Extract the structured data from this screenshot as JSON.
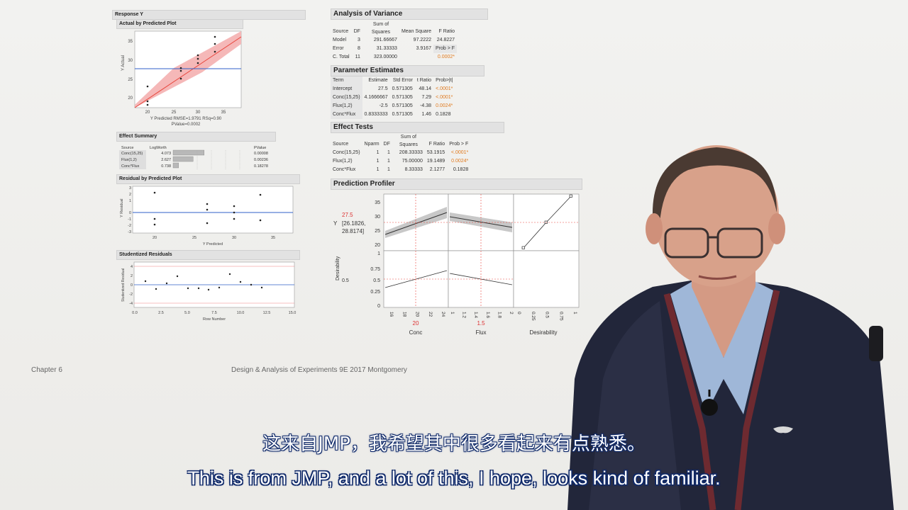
{
  "left_panel": {
    "response_title": "Response Y",
    "actual_plot": {
      "title": "Actual by Predicted Plot",
      "ylabel": "Y Actual",
      "yticks": [
        "35",
        "30",
        "25",
        "20"
      ],
      "xticks": [
        "20",
        "25",
        "30",
        "35"
      ],
      "xlabel": "Y Predicted RMSE=1.9791 RSq=0.90",
      "pvalue": "PValue=0.0002"
    },
    "effect_summary": {
      "title": "Effect Summary",
      "headers": [
        "Source",
        "LogWorth",
        "PValue"
      ],
      "rows": [
        {
          "source": "Conc(15,25)",
          "logworth": "4.073",
          "pvalue": "0.00008",
          "bar": 0.73
        },
        {
          "source": "Flux(1,2)",
          "logworth": "2.627",
          "pvalue": "0.00236",
          "bar": 0.47
        },
        {
          "source": "Conc*Flux",
          "logworth": "0.738",
          "pvalue": "0.18278",
          "bar": 0.13
        }
      ]
    },
    "residual_plot": {
      "title": "Residual by Predicted Plot",
      "ylabel": "Y Residual",
      "yticks": [
        "3",
        "2",
        "1",
        "0",
        "-1",
        "-2",
        "-3"
      ],
      "xticks": [
        "20",
        "25",
        "30",
        "35"
      ],
      "xlabel": "Y Predicted"
    },
    "studentized": {
      "title": "Studentized Residuals",
      "ylabel": "Studentized Residual",
      "yticks": [
        "4",
        "2",
        "0",
        "-2",
        "-4"
      ],
      "xticks": [
        "0.0",
        "2.5",
        "5.0",
        "7.5",
        "10.0",
        "12.5",
        "15.0"
      ],
      "xlabel": "Row Number"
    }
  },
  "anova": {
    "title": "Analysis of Variance",
    "headers": [
      "Source",
      "DF",
      "Sum of Squares",
      "Mean Square",
      "F Ratio"
    ],
    "rows": [
      [
        "Model",
        "3",
        "291.66667",
        "97.2222",
        "24.8227"
      ],
      [
        "Error",
        "8",
        "31.33333",
        "3.9167",
        "Prob > F"
      ],
      [
        "C. Total",
        "11",
        "323.00000",
        "",
        "0.0002*"
      ]
    ]
  },
  "params": {
    "title": "Parameter Estimates",
    "headers": [
      "Term",
      "Estimate",
      "Std Error",
      "t Ratio",
      "Prob>|t|"
    ],
    "rows": [
      [
        "Intercept",
        "27.5",
        "0.571305",
        "48.14",
        "<.0001*"
      ],
      [
        "Conc(15,25)",
        "4.1666667",
        "0.571305",
        "7.29",
        "<.0001*"
      ],
      [
        "Flux(1,2)",
        "-2.5",
        "0.571305",
        "-4.38",
        "0.0024*"
      ],
      [
        "Conc*Flux",
        "0.8333333",
        "0.571305",
        "1.46",
        "0.1828"
      ]
    ]
  },
  "effect_tests": {
    "title": "Effect Tests",
    "headers": [
      "Source",
      "Nparm",
      "DF",
      "Sum of Squares",
      "F Ratio",
      "Prob > F"
    ],
    "rows": [
      [
        "Conc(15,25)",
        "1",
        "1",
        "208.33333",
        "53.1915",
        "<.0001*"
      ],
      [
        "Flux(1,2)",
        "1",
        "1",
        "75.00000",
        "19.1489",
        "0.0024*"
      ],
      [
        "Conc*Flux",
        "1",
        "1",
        "8.33333",
        "2.1277",
        "0.1828"
      ]
    ]
  },
  "profiler": {
    "title": "Prediction Profiler",
    "y_value": "27.5",
    "y_ci": "[26.1826,",
    "y_ci2": "28.8174]",
    "y_label": "Y",
    "yticks": [
      "35",
      "30",
      "25",
      "20"
    ],
    "dticks": [
      "1",
      "0.75",
      "0.5",
      "0.25",
      "0"
    ],
    "desirability_label": "Desirability",
    "desirability_value": "0.5",
    "conc_ticks": [
      "16",
      "18",
      "20",
      "22",
      "24"
    ],
    "flux_ticks": [
      "1",
      "1.2",
      "1.4",
      "1.6",
      "1.8",
      "2"
    ],
    "des_ticks": [
      "0",
      "0.25",
      "0.5",
      "0.75",
      "1"
    ],
    "conc_value": "20",
    "flux_value": "1.5",
    "x_labels": [
      "Conc",
      "Flux",
      "Desirability"
    ]
  },
  "footer": {
    "chapter": "Chapter 6",
    "book": "Design & Analysis of Experiments 9E 2017 Montgomery"
  },
  "subtitles": {
    "zh": "这来自JMP，我希望其中很多看起来有点熟悉。",
    "en": "This is from JMP, and a lot of this, I hope, looks kind of familiar."
  },
  "colors": {
    "accent_red": "#e8443a",
    "band_pink": "#f5b8b8",
    "ref_blue": "#2f5fc9",
    "orange": "#e07a1f"
  }
}
